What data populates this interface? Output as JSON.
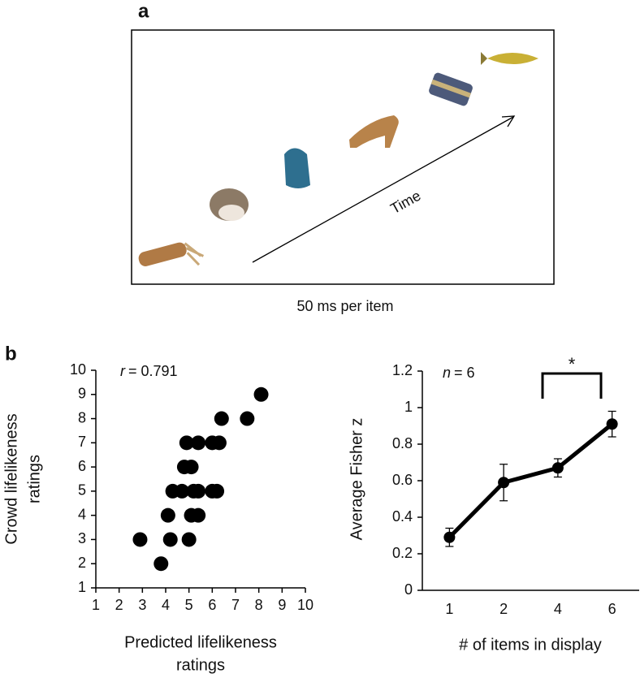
{
  "panel_a": {
    "label": "a",
    "arrow_label": "Time",
    "caption": "50 ms per item"
  },
  "panel_b_label": "b",
  "chart_data": [
    {
      "type": "scatter",
      "stat_symbol": "r",
      "stat_text": "= 0.791",
      "xlabel": [
        "Predicted lifelikeness",
        "ratings"
      ],
      "ylabel": [
        "Crowd lifelikeness",
        "ratings"
      ],
      "x": [
        2.9,
        4.2,
        5.0,
        3.8,
        4.1,
        5.1,
        5.4,
        4.3,
        4.7,
        5.2,
        5.4,
        6.0,
        6.2,
        4.8,
        5.1,
        4.9,
        5.4,
        6.0,
        6.3,
        6.4,
        7.5,
        8.1
      ],
      "values": [
        3,
        3,
        3,
        2,
        4,
        4,
        4,
        5,
        5,
        5,
        5,
        5,
        5,
        6,
        6,
        7,
        7,
        7,
        7,
        8,
        8,
        9
      ],
      "color": "#000000",
      "xlim": [
        1,
        10
      ],
      "xticks": [
        1,
        2,
        3,
        4,
        5,
        6,
        7,
        8,
        9,
        10
      ],
      "ylim": [
        1,
        10
      ],
      "yticks": [
        1,
        2,
        3,
        4,
        5,
        6,
        7,
        8,
        9,
        10
      ]
    },
    {
      "type": "line",
      "stat_symbol": "n",
      "stat_text": "= 6",
      "xlabel": "# of items in display",
      "ylabel": "Average Fisher z",
      "categories": [
        "1",
        "2",
        "4",
        "6"
      ],
      "values": [
        0.29,
        0.59,
        0.67,
        0.91
      ],
      "errors": [
        0.05,
        0.1,
        0.05,
        0.07
      ],
      "color": "#000000",
      "significance": "*",
      "ylim": [
        0,
        1.2
      ],
      "yticks": [
        0,
        0.2,
        0.4,
        0.6,
        0.8,
        1,
        1.2
      ]
    }
  ]
}
